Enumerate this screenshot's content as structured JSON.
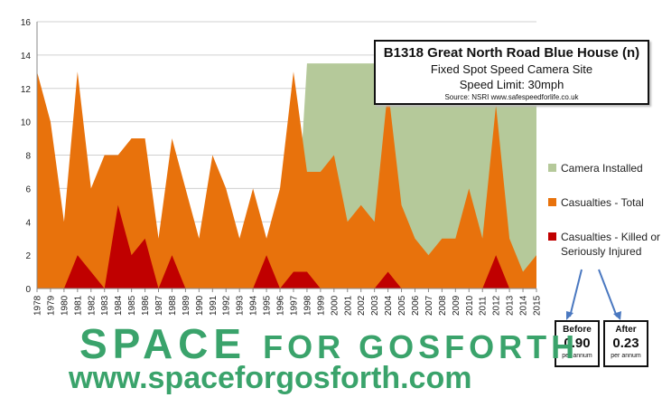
{
  "chart_data": {
    "type": "area",
    "title": "B1318 Great North Road Blue House (n)",
    "subtitle": "Fixed Spot Speed Camera Site",
    "subtitle2": "Speed Limit: 30mph",
    "source": "Source: NSRI   www.safespeedforlife.co.uk",
    "ylim": [
      0,
      16
    ],
    "yticks": [
      0,
      2,
      4,
      6,
      8,
      10,
      12,
      14,
      16
    ],
    "grid": true,
    "legend_position": "right",
    "x": [
      "1978",
      "1979",
      "1980",
      "1981",
      "1982",
      "1983",
      "1984",
      "1985",
      "1986",
      "1987",
      "1988",
      "1989",
      "1990",
      "1991",
      "1992",
      "1993",
      "1994",
      "1995",
      "1996",
      "1997",
      "1998",
      "1999",
      "2000",
      "2001",
      "2002",
      "2003",
      "2004",
      "2005",
      "2006",
      "2007",
      "2008",
      "2009",
      "2010",
      "2011",
      "2012",
      "2013",
      "2014",
      "2015"
    ],
    "series": [
      {
        "name": "Camera Installed",
        "color": "#b5c99a",
        "values": [
          0,
          0,
          0,
          0,
          0,
          0,
          0,
          0,
          0,
          0,
          0,
          0,
          0,
          0,
          0,
          0,
          0,
          0,
          0,
          0,
          13.5,
          13.5,
          13.5,
          13.5,
          13.5,
          13.5,
          13.5,
          13.5,
          13.5,
          13.5,
          13.5,
          13.5,
          13.5,
          13.5,
          13.5,
          13.5,
          13.5,
          13.5
        ]
      },
      {
        "name": "Casualties - Total",
        "color": "#e8720c",
        "values": [
          13,
          10,
          4,
          13,
          6,
          8,
          8,
          9,
          9,
          3,
          9,
          6,
          3,
          8,
          6,
          3,
          6,
          3,
          6,
          13,
          7,
          7,
          8,
          4,
          5,
          4,
          12,
          5,
          3,
          2,
          3,
          3,
          6,
          3,
          11,
          3,
          1,
          2
        ]
      },
      {
        "name": "Casualties - Killed or Seriously Injured",
        "color": "#c00000",
        "values": [
          0,
          0,
          0,
          2,
          1,
          0,
          5,
          2,
          3,
          0,
          2,
          0,
          0,
          0,
          0,
          0,
          0,
          2,
          0,
          1,
          1,
          0,
          0,
          0,
          0,
          0,
          1,
          0,
          0,
          0,
          0,
          0,
          0,
          0,
          2,
          0,
          0,
          0
        ]
      }
    ]
  },
  "legend": {
    "camera": "Camera Installed",
    "total": "Casualties - Total",
    "ksi_line1": "Casualties - Killed or",
    "ksi_line2": "Seriously Injured"
  },
  "stats": {
    "before": {
      "label": "Before",
      "value": "0.90",
      "unit": "per annum"
    },
    "after": {
      "label": "After",
      "value": "0.23",
      "unit": "per annum"
    }
  },
  "branding": {
    "logo_word1": "SPACE",
    "logo_word2": "FOR GOSFORTH",
    "website": "www.spaceforgosforth.com"
  }
}
